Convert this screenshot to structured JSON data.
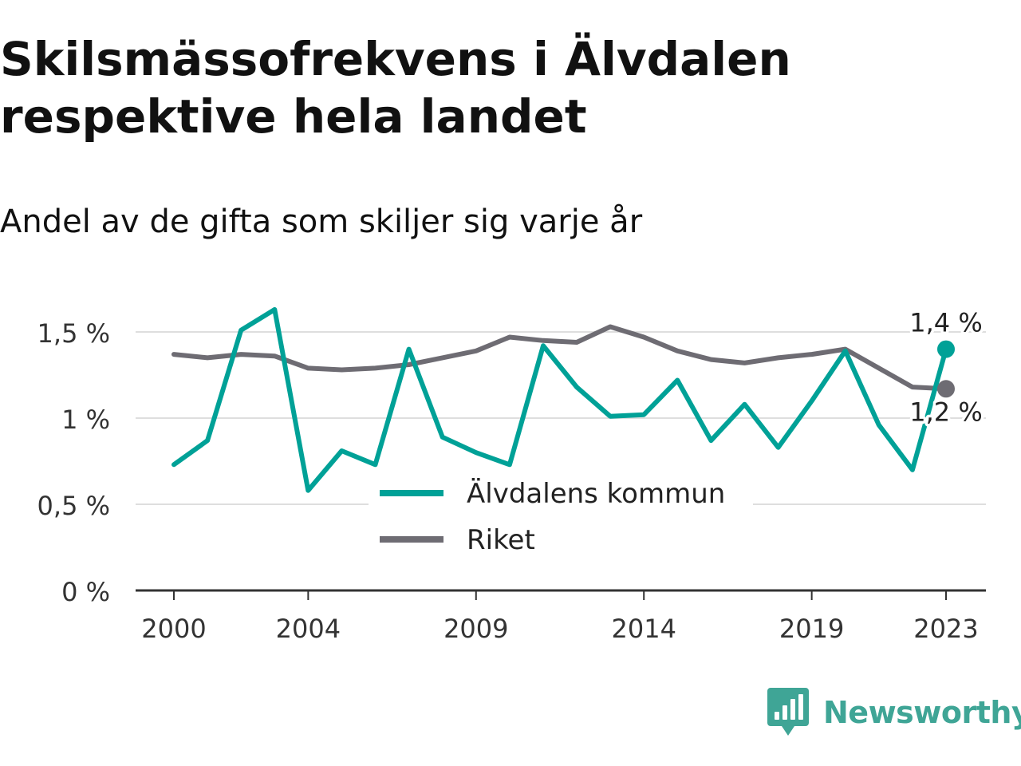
{
  "title_line1": "Skilsmässofrekvens i Älvdalen",
  "title_line2": "respektive hela landet",
  "subtitle": "Andel av de gifta som skiljer sig varje år",
  "brand": {
    "name": "Newsworthy",
    "logo_icon": "newsworthy-logo-icon",
    "color": "#3fa596"
  },
  "chart_data": {
    "type": "line",
    "x": [
      2000,
      2001,
      2002,
      2003,
      2004,
      2005,
      2006,
      2007,
      2008,
      2009,
      2010,
      2011,
      2012,
      2013,
      2014,
      2015,
      2016,
      2017,
      2018,
      2019,
      2020,
      2021,
      2022,
      2023
    ],
    "series": [
      {
        "name": "Älvdalens kommun",
        "color": "#00a197",
        "values": [
          0.73,
          0.87,
          1.51,
          1.63,
          0.58,
          0.81,
          0.73,
          1.4,
          0.89,
          0.8,
          0.73,
          1.42,
          1.18,
          1.01,
          1.02,
          1.22,
          0.87,
          1.08,
          0.83,
          1.1,
          1.39,
          0.96,
          0.7,
          1.4
        ],
        "end_label": "1,4 %"
      },
      {
        "name": "Riket",
        "color": "#6e6c73",
        "values": [
          1.37,
          1.35,
          1.37,
          1.36,
          1.29,
          1.28,
          1.29,
          1.31,
          1.35,
          1.39,
          1.47,
          1.45,
          1.44,
          1.53,
          1.47,
          1.39,
          1.34,
          1.32,
          1.35,
          1.37,
          1.4,
          1.29,
          1.18,
          1.17
        ],
        "end_label": "1,2 %"
      }
    ],
    "x_ticks": [
      2000,
      2004,
      2009,
      2014,
      2019,
      2023
    ],
    "x_tick_labels": [
      "2000",
      "2004",
      "2009",
      "2014",
      "2019",
      "2023"
    ],
    "y_ticks": [
      0,
      0.5,
      1,
      1.5
    ],
    "y_tick_labels": [
      "0 %",
      "0,5 %",
      "1 %",
      "1,5 %"
    ],
    "ylim": [
      0,
      1.7
    ],
    "xlim": [
      2000,
      2023
    ],
    "grid": "horizontal",
    "legend_position": "bottom-center",
    "title": "Skilsmässofrekvens i Älvdalen respektive hela landet",
    "subtitle": "Andel av de gifta som skiljer sig varje år",
    "xlabel": "",
    "ylabel": ""
  }
}
